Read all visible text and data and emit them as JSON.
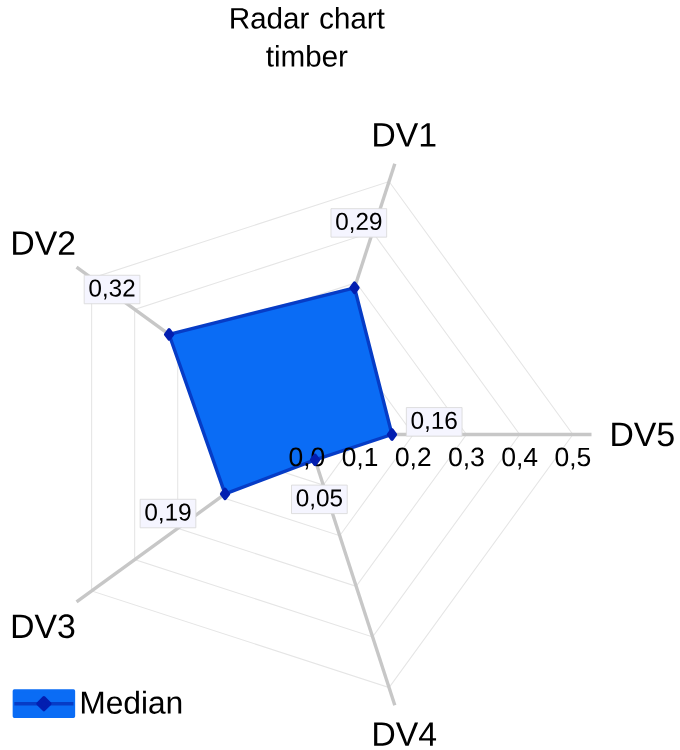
{
  "chart_data": {
    "type": "radar",
    "title": "Radar chart timber",
    "categories": [
      "DV1",
      "DV5",
      "DV4",
      "DV3",
      "DV2"
    ],
    "series": [
      {
        "name": "Median",
        "color": "#0a6cf5",
        "values": [
          0.29,
          0.16,
          0.05,
          0.19,
          0.32
        ]
      }
    ],
    "ylim": [
      0,
      0.5
    ],
    "yticks": [
      {
        "value": 0,
        "label": "0,0"
      },
      {
        "value": 0.1,
        "label": "0,1"
      },
      {
        "value": 0.2,
        "label": "0,2"
      },
      {
        "value": 0.3,
        "label": "0,3"
      },
      {
        "value": 0.4,
        "label": "0,4"
      },
      {
        "value": 0.5,
        "label": "0,5"
      }
    ],
    "value_labels": [
      "0,29",
      "0,16",
      "0,05",
      "0,19",
      "0,32"
    ],
    "grid": true,
    "legend": "bottom left",
    "marker": "diamond",
    "line_style": "solid"
  }
}
